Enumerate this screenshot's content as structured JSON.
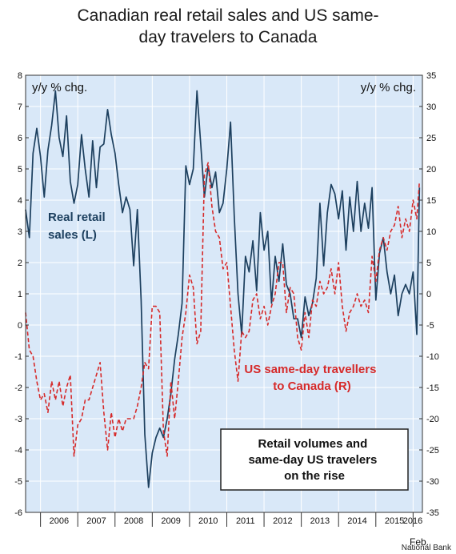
{
  "title_lines": [
    "Canadian real retail sales and US same-",
    "day travelers to Canada"
  ],
  "source": "National Bank",
  "chart_data": {
    "type": "line",
    "title": "Canadian real retail sales and US same-day travelers to Canada",
    "left_axis_label": "y/y % chg.",
    "right_axis_label": "y/y % chg.",
    "ylim_left": [
      -6,
      8
    ],
    "ylim_right": [
      -35,
      35
    ],
    "left_ticks": [
      "8",
      "7",
      "6",
      "5",
      "4",
      "3",
      "2",
      "1",
      "0",
      "-1",
      "-2",
      "-3",
      "-4",
      "-5",
      "-6"
    ],
    "right_ticks": [
      "35",
      "30",
      "25",
      "20",
      "15",
      "10",
      "5",
      "0",
      "-5",
      "-10",
      "-15",
      "-20",
      "-25",
      "-30",
      "-35"
    ],
    "x_ticks": [
      "2006",
      "2007",
      "2008",
      "2009",
      "2010",
      "2011",
      "2012",
      "2013",
      "2014",
      "2015",
      "2016"
    ],
    "x_extra_label": "Feb.",
    "xlim": [
      2005.6,
      2016.25
    ],
    "grid": true,
    "series": [
      {
        "name": "Real retail sales (L)",
        "label_lines": [
          "Real retail",
          "sales (L)"
        ],
        "axis": "left",
        "color": "#1c3f5e",
        "style": "solid",
        "points": [
          [
            2005.6,
            3.7
          ],
          [
            2005.7,
            2.8
          ],
          [
            2005.8,
            5.5
          ],
          [
            2005.9,
            6.3
          ],
          [
            2006.0,
            5.4
          ],
          [
            2006.1,
            4.1
          ],
          [
            2006.2,
            5.6
          ],
          [
            2006.3,
            6.4
          ],
          [
            2006.4,
            7.5
          ],
          [
            2006.5,
            6.0
          ],
          [
            2006.6,
            5.4
          ],
          [
            2006.7,
            6.7
          ],
          [
            2006.8,
            4.6
          ],
          [
            2006.9,
            3.9
          ],
          [
            2007.0,
            4.5
          ],
          [
            2007.1,
            6.1
          ],
          [
            2007.2,
            5.0
          ],
          [
            2007.3,
            4.1
          ],
          [
            2007.4,
            5.9
          ],
          [
            2007.5,
            4.4
          ],
          [
            2007.6,
            5.7
          ],
          [
            2007.7,
            5.8
          ],
          [
            2007.8,
            6.9
          ],
          [
            2007.9,
            6.1
          ],
          [
            2008.0,
            5.5
          ],
          [
            2008.1,
            4.5
          ],
          [
            2008.2,
            3.6
          ],
          [
            2008.3,
            4.1
          ],
          [
            2008.4,
            3.7
          ],
          [
            2008.5,
            1.9
          ],
          [
            2008.6,
            3.7
          ],
          [
            2008.7,
            0.8
          ],
          [
            2008.8,
            -3.5
          ],
          [
            2008.9,
            -5.2
          ],
          [
            2009.0,
            -4.1
          ],
          [
            2009.1,
            -3.6
          ],
          [
            2009.2,
            -3.3
          ],
          [
            2009.3,
            -3.6
          ],
          [
            2009.4,
            -3.0
          ],
          [
            2009.5,
            -2.2
          ],
          [
            2009.6,
            -1.1
          ],
          [
            2009.7,
            -0.3
          ],
          [
            2009.8,
            0.7
          ],
          [
            2009.9,
            5.1
          ],
          [
            2010.0,
            4.5
          ],
          [
            2010.1,
            5.0
          ],
          [
            2010.2,
            7.5
          ],
          [
            2010.3,
            5.8
          ],
          [
            2010.4,
            4.1
          ],
          [
            2010.5,
            5.1
          ],
          [
            2010.6,
            4.4
          ],
          [
            2010.7,
            4.9
          ],
          [
            2010.8,
            3.6
          ],
          [
            2010.9,
            3.9
          ],
          [
            2011.0,
            5.0
          ],
          [
            2011.1,
            6.5
          ],
          [
            2011.2,
            3.5
          ],
          [
            2011.3,
            1.0
          ],
          [
            2011.4,
            -0.3
          ],
          [
            2011.5,
            2.2
          ],
          [
            2011.6,
            1.7
          ],
          [
            2011.7,
            2.7
          ],
          [
            2011.8,
            1.1
          ],
          [
            2011.9,
            3.6
          ],
          [
            2012.0,
            2.4
          ],
          [
            2012.1,
            3.0
          ],
          [
            2012.2,
            0.7
          ],
          [
            2012.3,
            2.2
          ],
          [
            2012.4,
            1.4
          ],
          [
            2012.5,
            2.6
          ],
          [
            2012.6,
            1.3
          ],
          [
            2012.7,
            1.0
          ],
          [
            2012.8,
            0.2
          ],
          [
            2012.9,
            0.2
          ],
          [
            2013.0,
            -0.4
          ],
          [
            2013.1,
            0.9
          ],
          [
            2013.2,
            0.3
          ],
          [
            2013.3,
            0.7
          ],
          [
            2013.4,
            1.5
          ],
          [
            2013.5,
            3.9
          ],
          [
            2013.6,
            1.9
          ],
          [
            2013.7,
            3.6
          ],
          [
            2013.8,
            4.5
          ],
          [
            2013.9,
            4.2
          ],
          [
            2014.0,
            3.4
          ],
          [
            2014.1,
            4.3
          ],
          [
            2014.2,
            2.4
          ],
          [
            2014.3,
            4.1
          ],
          [
            2014.4,
            3.0
          ],
          [
            2014.5,
            4.6
          ],
          [
            2014.6,
            3.0
          ],
          [
            2014.7,
            3.9
          ],
          [
            2014.8,
            3.1
          ],
          [
            2014.9,
            4.4
          ],
          [
            2015.0,
            0.8
          ],
          [
            2015.1,
            2.3
          ],
          [
            2015.2,
            2.8
          ],
          [
            2015.3,
            1.7
          ],
          [
            2015.4,
            1.0
          ],
          [
            2015.5,
            1.6
          ],
          [
            2015.6,
            0.3
          ],
          [
            2015.7,
            1.0
          ],
          [
            2015.8,
            1.3
          ],
          [
            2015.9,
            1.0
          ],
          [
            2016.0,
            1.7
          ],
          [
            2016.1,
            -0.3
          ],
          [
            2016.17,
            4.4
          ]
        ]
      },
      {
        "name": "US same-day travellers to Canada (R)",
        "label_lines": [
          "US same-day travellers",
          "to Canada (R)"
        ],
        "axis": "right",
        "color": "#d62a2a",
        "style": "dashed",
        "points": [
          [
            2005.6,
            -3
          ],
          [
            2005.7,
            -9
          ],
          [
            2005.8,
            -10
          ],
          [
            2005.9,
            -14
          ],
          [
            2006.0,
            -17
          ],
          [
            2006.1,
            -16
          ],
          [
            2006.2,
            -19
          ],
          [
            2006.3,
            -14
          ],
          [
            2006.4,
            -17
          ],
          [
            2006.5,
            -14
          ],
          [
            2006.6,
            -18
          ],
          [
            2006.7,
            -15
          ],
          [
            2006.8,
            -13
          ],
          [
            2006.9,
            -26
          ],
          [
            2007.0,
            -21
          ],
          [
            2007.1,
            -20
          ],
          [
            2007.2,
            -17
          ],
          [
            2007.3,
            -17
          ],
          [
            2007.4,
            -15
          ],
          [
            2007.5,
            -13
          ],
          [
            2007.6,
            -11
          ],
          [
            2007.7,
            -19
          ],
          [
            2007.8,
            -25
          ],
          [
            2007.9,
            -19
          ],
          [
            2008.0,
            -23
          ],
          [
            2008.1,
            -20
          ],
          [
            2008.2,
            -22
          ],
          [
            2008.3,
            -20
          ],
          [
            2008.4,
            -20
          ],
          [
            2008.5,
            -20
          ],
          [
            2008.6,
            -18
          ],
          [
            2008.7,
            -15
          ],
          [
            2008.8,
            -11
          ],
          [
            2008.9,
            -12
          ],
          [
            2009.0,
            -2
          ],
          [
            2009.1,
            -2
          ],
          [
            2009.2,
            -3
          ],
          [
            2009.3,
            -22
          ],
          [
            2009.4,
            -26
          ],
          [
            2009.5,
            -14
          ],
          [
            2009.6,
            -20
          ],
          [
            2009.7,
            -14
          ],
          [
            2009.8,
            -7
          ],
          [
            2009.9,
            -3
          ],
          [
            2010.0,
            3
          ],
          [
            2010.1,
            1
          ],
          [
            2010.2,
            -8
          ],
          [
            2010.3,
            -6
          ],
          [
            2010.4,
            19
          ],
          [
            2010.5,
            21
          ],
          [
            2010.6,
            14
          ],
          [
            2010.7,
            10
          ],
          [
            2010.8,
            9
          ],
          [
            2010.9,
            4
          ],
          [
            2011.0,
            5
          ],
          [
            2011.1,
            -2
          ],
          [
            2011.2,
            -9
          ],
          [
            2011.3,
            -14
          ],
          [
            2011.4,
            -6
          ],
          [
            2011.5,
            -7
          ],
          [
            2011.6,
            -6
          ],
          [
            2011.7,
            -1
          ],
          [
            2011.8,
            0
          ],
          [
            2011.9,
            -4
          ],
          [
            2012.0,
            -2
          ],
          [
            2012.1,
            -5
          ],
          [
            2012.2,
            -2
          ],
          [
            2012.3,
            0
          ],
          [
            2012.4,
            5
          ],
          [
            2012.5,
            5
          ],
          [
            2012.6,
            -3
          ],
          [
            2012.7,
            1
          ],
          [
            2012.8,
            0
          ],
          [
            2012.9,
            -7
          ],
          [
            2013.0,
            -9
          ],
          [
            2013.1,
            -3
          ],
          [
            2013.2,
            -7
          ],
          [
            2013.3,
            -1
          ],
          [
            2013.4,
            -2
          ],
          [
            2013.5,
            2
          ],
          [
            2013.6,
            0
          ],
          [
            2013.7,
            1
          ],
          [
            2013.8,
            4
          ],
          [
            2013.9,
            0
          ],
          [
            2014.0,
            5
          ],
          [
            2014.1,
            -2
          ],
          [
            2014.2,
            -6
          ],
          [
            2014.3,
            -3
          ],
          [
            2014.4,
            -2
          ],
          [
            2014.5,
            0
          ],
          [
            2014.6,
            -2
          ],
          [
            2014.7,
            -1
          ],
          [
            2014.8,
            -3
          ],
          [
            2014.9,
            6
          ],
          [
            2015.0,
            2
          ],
          [
            2015.1,
            7
          ],
          [
            2015.2,
            9
          ],
          [
            2015.3,
            7
          ],
          [
            2015.4,
            10
          ],
          [
            2015.5,
            11
          ],
          [
            2015.6,
            14
          ],
          [
            2015.7,
            9
          ],
          [
            2015.8,
            12
          ],
          [
            2015.9,
            10
          ],
          [
            2016.0,
            15
          ],
          [
            2016.1,
            12
          ],
          [
            2016.17,
            18
          ]
        ]
      }
    ],
    "annotation": [
      "Retail volumes and",
      "same-day US travelers",
      "on the rise"
    ]
  }
}
